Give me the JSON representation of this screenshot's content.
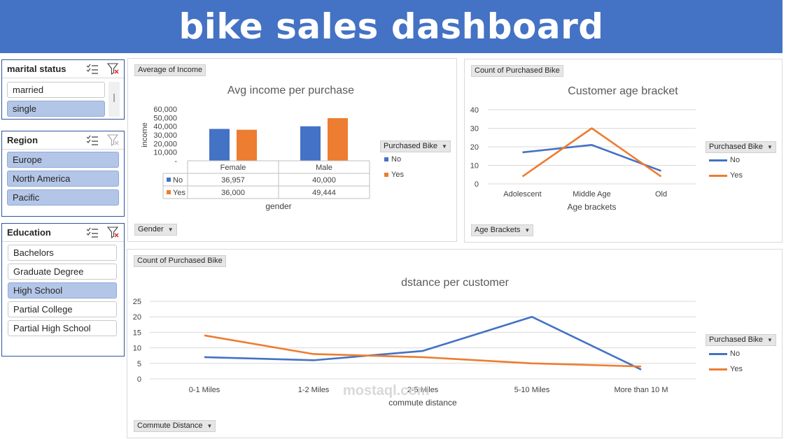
{
  "banner": {
    "title": "bike sales dashboard",
    "color": "#4472c4"
  },
  "slicers": {
    "marital": {
      "title": "marital status",
      "items": [
        {
          "label": "married",
          "selected": false
        },
        {
          "label": "single",
          "selected": true
        }
      ]
    },
    "region": {
      "title": "Region",
      "items": [
        {
          "label": "Europe",
          "selected": true
        },
        {
          "label": "North America",
          "selected": true
        },
        {
          "label": "Pacific",
          "selected": true
        }
      ]
    },
    "education": {
      "title": "Education",
      "items": [
        {
          "label": "Bachelors",
          "selected": false
        },
        {
          "label": "Graduate Degree",
          "selected": false
        },
        {
          "label": "High School",
          "selected": true
        },
        {
          "label": "Partial College",
          "selected": false
        },
        {
          "label": "Partial High School",
          "selected": false
        }
      ]
    }
  },
  "panels": {
    "income": {
      "value_field": "Average of Income",
      "axis_field": "Gender",
      "legend_field": "Purchased Bike"
    },
    "age": {
      "value_field": "Count of Purchased Bike",
      "axis_field": "Age Brackets",
      "legend_field": "Purchased Bike"
    },
    "commute": {
      "value_field": "Count of Purchased Bike",
      "axis_field": "Commute Distance",
      "legend_field": "Purchased Bike"
    }
  },
  "colors": {
    "No": "#4472c4",
    "Yes": "#ed7d31"
  },
  "watermark": "mostaql.com",
  "chart_data": [
    {
      "type": "bar",
      "title": "Avg income per purchase",
      "xlabel": "gender",
      "ylabel": "income",
      "categories": [
        "Female",
        "Male"
      ],
      "series": [
        {
          "name": "No",
          "values": [
            36957,
            40000
          ],
          "labels": [
            "36,957",
            "40,000"
          ]
        },
        {
          "name": "Yes",
          "values": [
            36000,
            49444
          ],
          "labels": [
            "36,000",
            "49,444"
          ]
        }
      ],
      "yticks": [
        "-",
        "10,000",
        "20,000",
        "30,000",
        "40,000",
        "50,000",
        "60,000"
      ],
      "ylim": [
        0,
        60000
      ],
      "data_table": true,
      "legend": "right"
    },
    {
      "type": "line",
      "title": "Customer age bracket",
      "xlabel": "Age brackets",
      "ylabel": "",
      "categories": [
        "Adolescent",
        "Middle Age",
        "Old"
      ],
      "series": [
        {
          "name": "No",
          "values": [
            17,
            21,
            7
          ]
        },
        {
          "name": "Yes",
          "values": [
            4,
            30,
            4
          ]
        }
      ],
      "yticks": [
        "0",
        "10",
        "20",
        "30",
        "40"
      ],
      "ylim": [
        0,
        40
      ],
      "grid": true,
      "legend": "right"
    },
    {
      "type": "line",
      "title": "dstance per customer",
      "xlabel": "commute distance",
      "ylabel": "",
      "categories": [
        "0-1 Miles",
        "1-2 Miles",
        "2-5 Miles",
        "5-10 Miles",
        "More than 10 M"
      ],
      "series": [
        {
          "name": "No",
          "values": [
            7,
            6,
            9,
            20,
            3
          ]
        },
        {
          "name": "Yes",
          "values": [
            14,
            8,
            7,
            5,
            4
          ]
        }
      ],
      "yticks": [
        "0",
        "5",
        "10",
        "15",
        "20",
        "25"
      ],
      "ylim": [
        0,
        25
      ],
      "grid": true,
      "legend": "right"
    }
  ]
}
